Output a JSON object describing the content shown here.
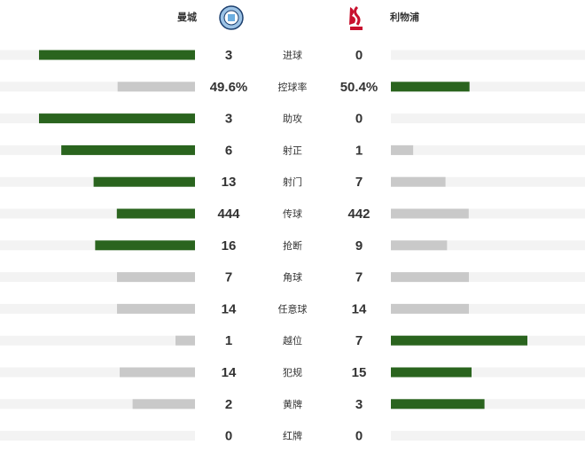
{
  "header": {
    "home": "曼城",
    "away": "利物浦"
  },
  "colors": {
    "leading": "#2a641e",
    "trailing": "#c9c9c9",
    "track": "#f3f3f3"
  },
  "stats": [
    {
      "label": "进球",
      "home": 3,
      "away": 0
    },
    {
      "label": "控球率",
      "home": 49.6,
      "home_label": "49.6%",
      "away": 50.4,
      "away_label": "50.4%"
    },
    {
      "label": "助攻",
      "home": 3,
      "away": 0
    },
    {
      "label": "射正",
      "home": 6,
      "away": 1
    },
    {
      "label": "射门",
      "home": 13,
      "away": 7
    },
    {
      "label": "传球",
      "home": 444,
      "away": 442
    },
    {
      "label": "抢断",
      "home": 16,
      "away": 9
    },
    {
      "label": "角球",
      "home": 7,
      "away": 7
    },
    {
      "label": "任意球",
      "home": 14,
      "away": 14
    },
    {
      "label": "越位",
      "home": 1,
      "away": 7
    },
    {
      "label": "犯规",
      "home": 14,
      "away": 15
    },
    {
      "label": "黄牌",
      "home": 2,
      "away": 3
    },
    {
      "label": "红牌",
      "home": 0,
      "away": 0
    }
  ]
}
